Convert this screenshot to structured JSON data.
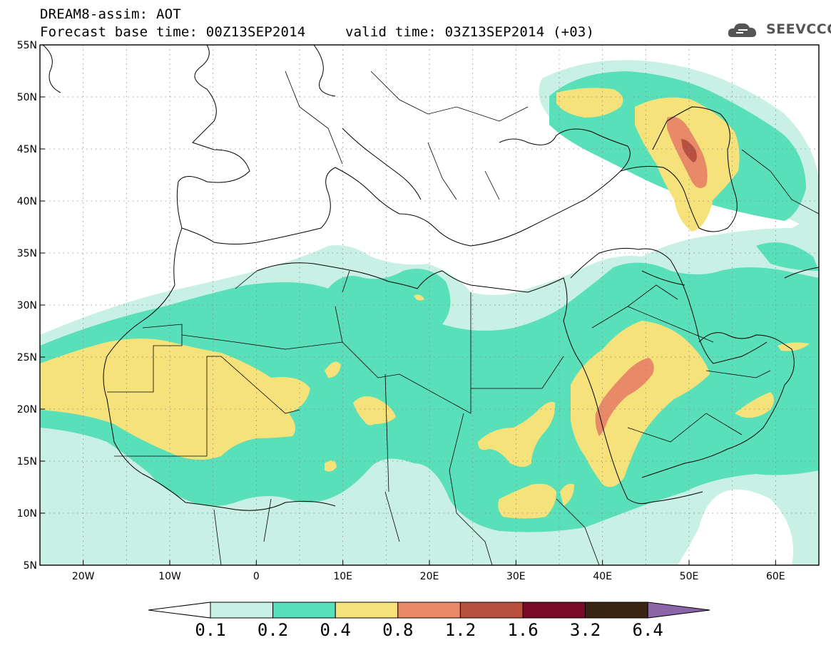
{
  "header": {
    "line1": "DREAM8-assim: AOT",
    "base_time": "Forecast base time: 00Z13SEP2014",
    "valid_time": "valid time: 03Z13SEP2014 (+03)"
  },
  "logo": {
    "icon": "cloud-icon",
    "text": "SEEVCCC"
  },
  "map": {
    "lon_range": [
      -25,
      65
    ],
    "lat_range": [
      5,
      55
    ],
    "lon_ticks": [
      {
        "value": -20,
        "label": "20W"
      },
      {
        "value": -10,
        "label": "10W"
      },
      {
        "value": 0,
        "label": "0"
      },
      {
        "value": 10,
        "label": "10E"
      },
      {
        "value": 20,
        "label": "20E"
      },
      {
        "value": 30,
        "label": "30E"
      },
      {
        "value": 40,
        "label": "40E"
      },
      {
        "value": 50,
        "label": "50E"
      },
      {
        "value": 60,
        "label": "60E"
      }
    ],
    "lat_ticks": [
      {
        "value": 55,
        "label": "55N"
      },
      {
        "value": 50,
        "label": "50N"
      },
      {
        "value": 45,
        "label": "45N"
      },
      {
        "value": 40,
        "label": "40N"
      },
      {
        "value": 35,
        "label": "35N"
      },
      {
        "value": 30,
        "label": "30N"
      },
      {
        "value": 25,
        "label": "25N"
      },
      {
        "value": 20,
        "label": "20N"
      },
      {
        "value": 15,
        "label": "15N"
      },
      {
        "value": 10,
        "label": "10N"
      },
      {
        "value": 5,
        "label": "5N"
      }
    ],
    "grid": "dotted"
  },
  "colorbar": {
    "colors": [
      "#ffffff",
      "#c8f0e4",
      "#5ae0b8",
      "#f6e27a",
      "#e88a68",
      "#b85040",
      "#7a0a24",
      "#3c2414",
      "#8c64a8"
    ],
    "labels": [
      "0.1",
      "0.2",
      "0.4",
      "0.8",
      "1.2",
      "1.6",
      "3.2",
      "6.4"
    ]
  }
}
